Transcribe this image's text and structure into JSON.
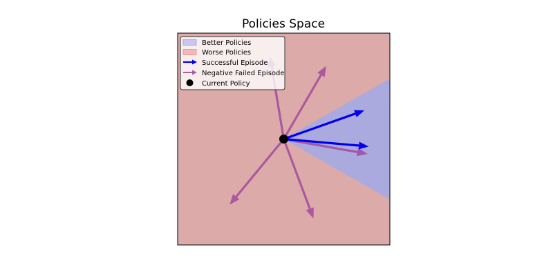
{
  "title": "Policies Space",
  "colors": {
    "worse_region": "#dbaaa9",
    "better_region": "#aaaadf",
    "successful_arrow": "#0000ee",
    "failed_arrow": "#a0449c",
    "current_policy": "#000000",
    "legend_better_swatch": "#c9c6f5",
    "legend_worse_swatch": "#f5b8b6"
  },
  "legend": {
    "placement": "upper-left",
    "items": [
      {
        "label": "Better Policies",
        "kind": "better-patch"
      },
      {
        "label": "Worse Policies",
        "kind": "worse-patch"
      },
      {
        "label": "Successful Episode",
        "kind": "successful-arrow"
      },
      {
        "label": "Negative Failed Episode",
        "kind": "failed-arrow"
      },
      {
        "label": "Current Policy",
        "kind": "policy-dot"
      }
    ]
  },
  "chart_data": {
    "type": "scatter",
    "xlim": [
      -1,
      1
    ],
    "ylim": [
      -1,
      1
    ],
    "grid": false,
    "axes_visible": false,
    "current_policy": {
      "x": 0,
      "y": 0
    },
    "better_region": [
      [
        0,
        0
      ],
      [
        1,
        0.57
      ],
      [
        1,
        -0.57
      ]
    ],
    "successful_episodes": [
      {
        "dx": 0.76,
        "dy": 0.27
      },
      {
        "dx": 0.8,
        "dy": -0.07
      }
    ],
    "failed_episodes": [
      {
        "dx": -0.13,
        "dy": 0.78
      },
      {
        "dx": 0.4,
        "dy": 0.69
      },
      {
        "dx": 0.79,
        "dy": -0.14
      },
      {
        "dx": -0.51,
        "dy": -0.62
      },
      {
        "dx": 0.28,
        "dy": -0.75
      }
    ]
  }
}
